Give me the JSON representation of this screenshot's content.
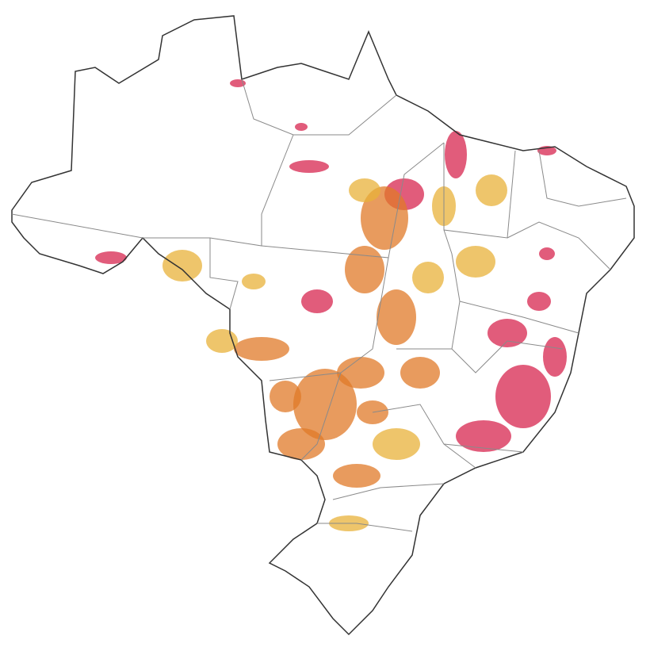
{
  "map": {
    "colors": {
      "background": "#ffffff",
      "border": "#333333",
      "state_border": "#8a8a8a",
      "high": "#d7264f",
      "medium": "#e07a28",
      "low": "#e8b23a",
      "water": "#5bc0c8"
    }
  }
}
